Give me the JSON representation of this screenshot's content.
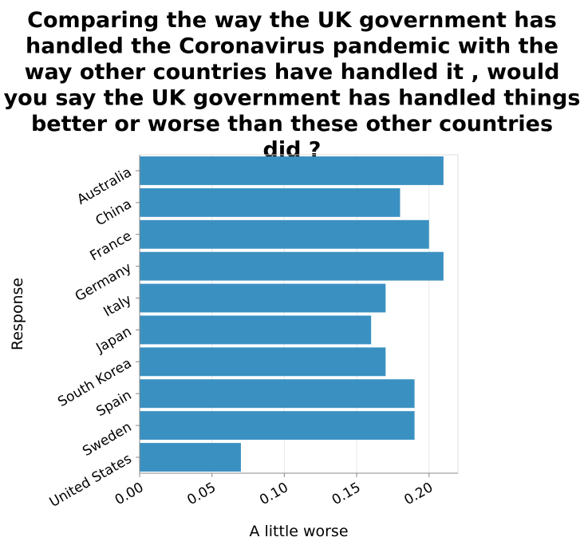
{
  "chart_data": {
    "type": "bar",
    "orientation": "horizontal",
    "title_lines": [
      "Comparing the way the UK government has",
      "handled the Coronavirus pandemic with the",
      "way other countries have handled it , would",
      "you say the UK government has handled things",
      "better or worse than these other countries",
      "did ?"
    ],
    "categories": [
      "Australia",
      "China",
      "France",
      "Germany",
      "Italy",
      "Japan",
      "South Korea",
      "Spain",
      "Sweden",
      "United States"
    ],
    "values": [
      0.21,
      0.18,
      0.2,
      0.21,
      0.17,
      0.16,
      0.17,
      0.19,
      0.19,
      0.07
    ],
    "xlabel": "A little worse",
    "ylabel": "Response",
    "xlim": [
      0,
      0.22
    ],
    "xticks": [
      0,
      0.05,
      0.1,
      0.15,
      0.2
    ],
    "xtick_labels": [
      "0.00",
      "0.05",
      "0.10",
      "0.15",
      "0.20"
    ],
    "grid": true,
    "bar_color": "#3a91c1"
  }
}
